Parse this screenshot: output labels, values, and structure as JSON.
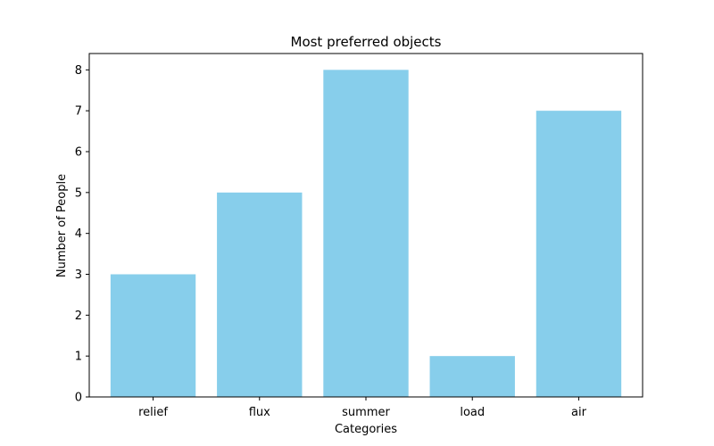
{
  "chart_data": {
    "type": "bar",
    "title": "Most preferred objects",
    "xlabel": "Categories",
    "ylabel": "Number of People",
    "categories": [
      "relief",
      "flux",
      "summer",
      "load",
      "air"
    ],
    "values": [
      3,
      5,
      8,
      1,
      7
    ],
    "ylim": [
      0,
      8.4
    ],
    "yticks": [
      "0",
      "1",
      "2",
      "3",
      "4",
      "5",
      "6",
      "7",
      "8"
    ],
    "bar_color": "#87ceeb",
    "grid": false,
    "legend": "none"
  }
}
